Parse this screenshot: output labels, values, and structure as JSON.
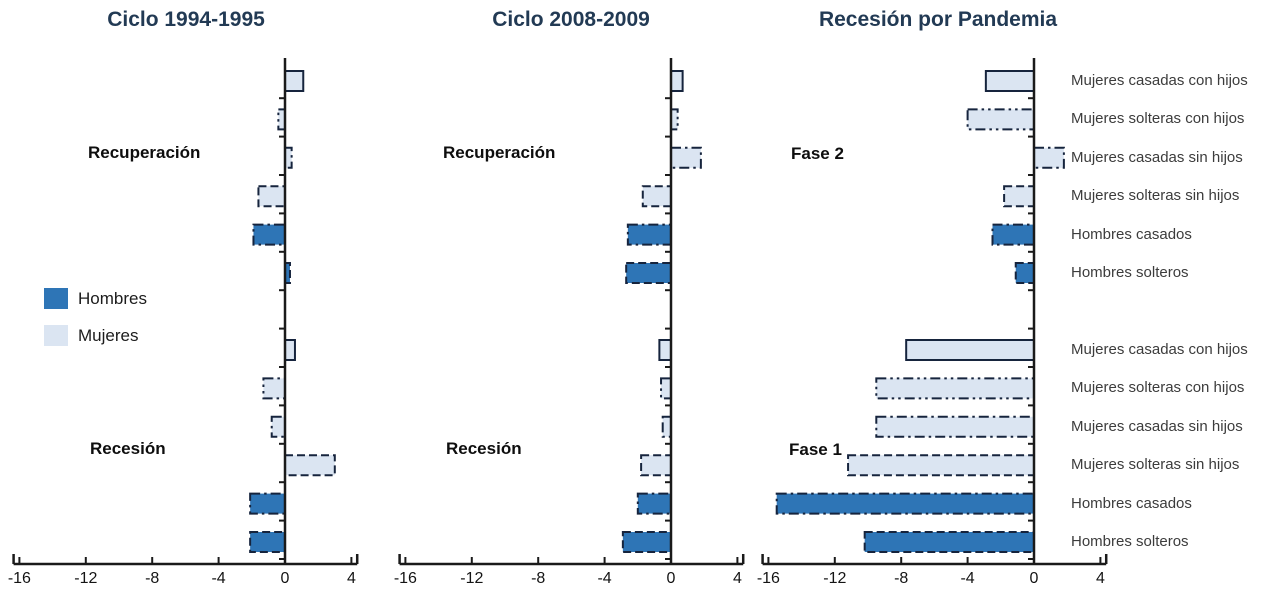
{
  "colors": {
    "hombres": "#2E75B6",
    "mujeres": "#DBE5F2",
    "bar_border": "#16243D",
    "axis": "#1a1a1a",
    "title": "#223A54"
  },
  "legend": {
    "items": [
      {
        "label": "Hombres",
        "color_key": "hombres"
      },
      {
        "label": "Mujeres",
        "color_key": "mujeres"
      }
    ]
  },
  "categories": [
    {
      "label": "Mujeres casadas con hijos",
      "gender": "mujeres",
      "border": "solid"
    },
    {
      "label": "Mujeres solteras con hijos",
      "gender": "mujeres",
      "border": "dashdotdot"
    },
    {
      "label": "Mujeres casadas sin hijos",
      "gender": "mujeres",
      "border": "dashdot"
    },
    {
      "label": "Mujeres solteras sin hijos",
      "gender": "mujeres",
      "border": "dashed"
    },
    {
      "label": "Hombres casados",
      "gender": "hombres",
      "border": "dashdot"
    },
    {
      "label": "Hombres solteros",
      "gender": "hombres",
      "border": "dashed"
    }
  ],
  "x_axis": {
    "ticks": [
      -16,
      -12,
      -8,
      -4,
      0,
      4
    ],
    "range": [
      -16,
      4
    ]
  },
  "chart_data": [
    {
      "type": "bar",
      "orientation": "horizontal",
      "title": "Ciclo 1994-1995",
      "xlim": [
        -16,
        4
      ],
      "show_category_labels": false,
      "phases": [
        {
          "label": "Recuperación",
          "values": [
            1.1,
            -0.4,
            0.4,
            -1.6,
            -1.9,
            0.3
          ]
        },
        {
          "label": "Recesión",
          "values": [
            0.6,
            -1.3,
            -0.8,
            3.0,
            -2.1,
            -2.1
          ]
        }
      ]
    },
    {
      "type": "bar",
      "orientation": "horizontal",
      "title": "Ciclo 2008-2009",
      "xlim": [
        -16,
        4
      ],
      "show_category_labels": false,
      "phases": [
        {
          "label": "Recuperación",
          "values": [
            0.7,
            0.4,
            1.8,
            -1.7,
            -2.6,
            -2.7
          ]
        },
        {
          "label": "Recesión",
          "values": [
            -0.7,
            -0.6,
            -0.5,
            -1.8,
            -2.0,
            -2.9
          ]
        }
      ]
    },
    {
      "type": "bar",
      "orientation": "horizontal",
      "title": "Recesión por Pandemia",
      "xlim": [
        -16,
        4
      ],
      "show_category_labels": true,
      "phases": [
        {
          "label": "Fase 2",
          "values": [
            -2.9,
            -4.0,
            1.8,
            -1.8,
            -2.5,
            -1.1
          ]
        },
        {
          "label": "Fase 1",
          "values": [
            -7.7,
            -9.5,
            -9.5,
            -11.2,
            -15.5,
            -10.2
          ]
        }
      ]
    }
  ]
}
